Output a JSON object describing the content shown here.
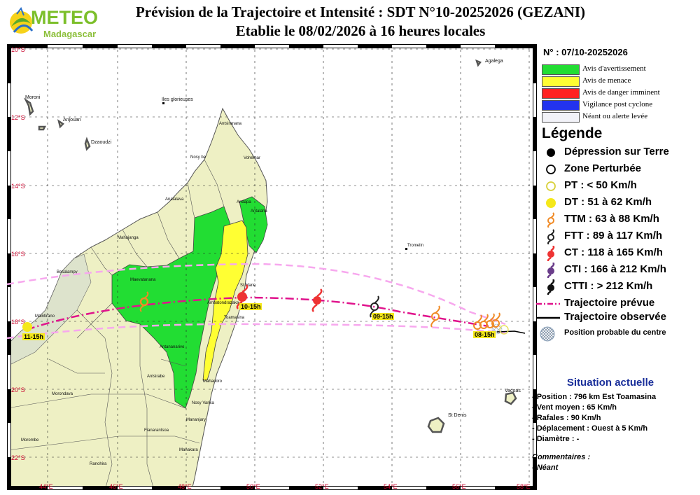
{
  "header": {
    "logo_word": "METEO",
    "logo_sub": "Madagascar",
    "title_line1": "Prévision de la Trajectoire et Intensité : SDT N°10-20252026 (GEZANI)",
    "title_line2": "Etablie le 08/02/2026 à 16 heures locales"
  },
  "colors": {
    "alert_warning": "#22dd33",
    "alert_threat": "#ffff33",
    "alert_danger": "#ff2222",
    "alert_post": "#2233ee",
    "alert_none": "#f2f2f8",
    "land": "#eef0c4",
    "land_alt": "#e2e8c8",
    "track_forecast": "#e0138c",
    "cone": "#f7a8ee",
    "situation_title": "#1a2f9a"
  },
  "map": {
    "lat_labels": [
      "10°S",
      "12°S",
      "14°S",
      "16°S",
      "18°S",
      "20°S",
      "22°S"
    ],
    "lon_labels": [
      "44°E",
      "46°E",
      "48°E",
      "50°E",
      "52°E",
      "54°E",
      "56°E",
      "58°E"
    ],
    "places": {
      "agalega": "Agalega",
      "moroni": "Moroni",
      "anjouan": "Anjouan",
      "dzaoudzi": "Dzaoudzi",
      "glorieuses": "Iles glorieuses",
      "antsiranana": "Antsiranana",
      "nosybe": "Nosy be",
      "vohemar": "Vohémar",
      "andapa": "Andapa",
      "antalaha": "Antalaha",
      "analalava": "Analalava",
      "mahajanga": "Mahajanga",
      "tromelin": "Tromelin",
      "besalampy": "Besalampy",
      "maevatanana": "Maevatanana",
      "stmarie": "St Marie",
      "maintirano": "Maintirano",
      "ambatondrazaka": "Ambatondrazaka",
      "toamasina": "Toamasina",
      "antananarivo": "Antananarivo",
      "antsirabe": "Antsirabe",
      "mahanoro": "Mahanoro",
      "morondava": "Morondava",
      "nosyvarika": "Nosy Varika",
      "mananjary": "Mananjary",
      "fianarantsoa": "Fianarantsoa",
      "morombe": "Morombe",
      "manakara": "Manakara",
      "ranohira": "Ranohira",
      "vacoas": "Vacoas",
      "stdenis": "St Denis"
    },
    "track_labels": [
      "11-15h",
      "10-15h",
      "09-15h",
      "08-15h"
    ]
  },
  "panel": {
    "bulletin_number": "N° : 07/10-20252026",
    "alerts": [
      {
        "label": "Avis d'avertissement",
        "color": "#22dd33"
      },
      {
        "label": "Avis de menace",
        "color": "#ffff33"
      },
      {
        "label": "Avis de danger imminent",
        "color": "#ff2222"
      },
      {
        "label": "Vigilance post cyclone",
        "color": "#2233ee"
      },
      {
        "label": "Néant ou alerte levée",
        "color": "#f2f2f8"
      }
    ],
    "legend_title": "Légende",
    "legend": [
      {
        "icon": "filled-black-circle-icon",
        "label": "Dépression sur Terre"
      },
      {
        "icon": "open-black-circle-icon",
        "label": "Zone Perturbée"
      },
      {
        "icon": "open-yellow-circle-icon",
        "label": "PT : < 50 Km/h"
      },
      {
        "icon": "filled-yellow-circle-icon",
        "label": "DT : 51 à 62 Km/h"
      },
      {
        "icon": "orange-cyclone-icon",
        "label": "TTM : 63 à 88 Km/h"
      },
      {
        "icon": "dark-open-cyclone-icon",
        "label": "FTT : 89 à 117 Km/h"
      },
      {
        "icon": "red-cyclone-icon",
        "label": "CT : 118 à 165 Km/h"
      },
      {
        "icon": "purple-cyclone-icon",
        "label": "CTI : 166 à 212 Km/h"
      },
      {
        "icon": "black-cyclone-icon",
        "label": "CTTI : > 212 Km/h"
      },
      {
        "icon": "dashed-pink-line-icon",
        "label": "Trajectoire prévue"
      },
      {
        "icon": "black-line-icon",
        "label": "Trajectoire observée"
      },
      {
        "icon": "hatched-circle-icon",
        "label": "Position probable du centre"
      }
    ],
    "situation_title": "Situation actuelle",
    "situation": [
      "- Position : 796 km Est Toamasina",
      "- Vent moyen : 65 Km/h",
      "- Rafales : 90 Km/h",
      "- Déplacement : Ouest à 5 Km/h",
      "- Diamètre : -"
    ],
    "comments_title": "Commentaires :",
    "comments_text": "- Néant"
  }
}
